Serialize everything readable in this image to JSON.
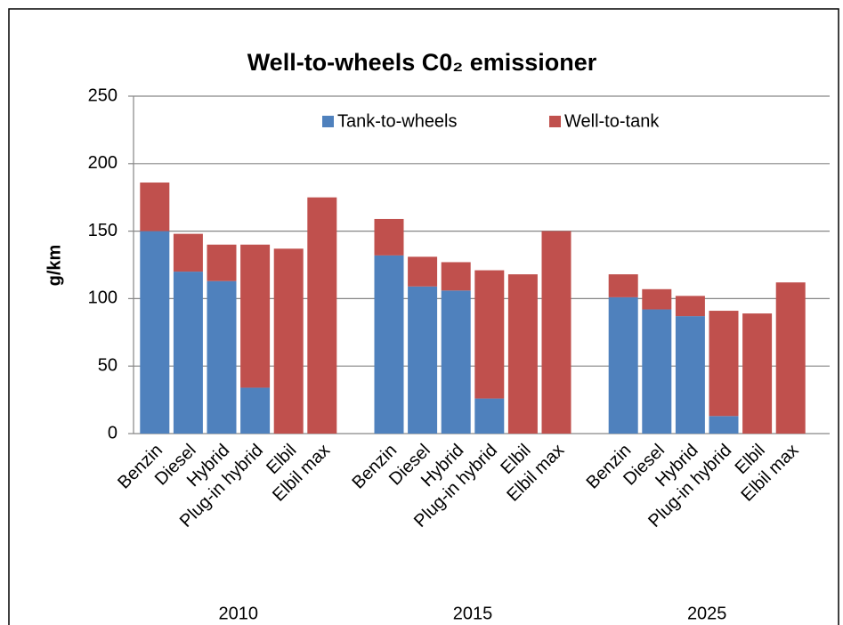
{
  "chart_data": {
    "type": "stacked_bar",
    "title": "Well-to-wheels C0₂ emissioner",
    "y_label": "g/km",
    "categories": [
      "Benzin",
      "Diesel",
      "Hybrid",
      "Plug-in hybrid",
      "Elbil",
      "Elbil max",
      null,
      "Benzin",
      "Diesel",
      "Hybrid",
      "Plug-in hybrid",
      "Elbil",
      "Elbil max",
      null,
      "Benzin",
      "Diesel",
      "Hybrid",
      "Plug-in hybrid",
      "Elbil",
      "Elbil max"
    ],
    "groups": [
      "2010",
      "2015",
      "2025"
    ],
    "series": [
      {
        "name": "Tank-to-wheels",
        "color": "#4f81bd",
        "values": [
          150,
          120,
          113,
          34,
          0,
          0,
          null,
          132,
          109,
          106,
          26,
          0,
          0,
          null,
          101,
          92,
          87,
          13,
          0,
          0
        ]
      },
      {
        "name": "Well-to-tank",
        "color": "#c0504d",
        "values": [
          36,
          28,
          27,
          106,
          137,
          175,
          null,
          27,
          22,
          21,
          95,
          118,
          150,
          null,
          17,
          15,
          15,
          78,
          89,
          112
        ]
      }
    ],
    "ylim": [
      0,
      250
    ],
    "yticks": [
      0,
      50,
      100,
      150,
      200,
      250
    ],
    "grid": true,
    "legend": "top"
  }
}
